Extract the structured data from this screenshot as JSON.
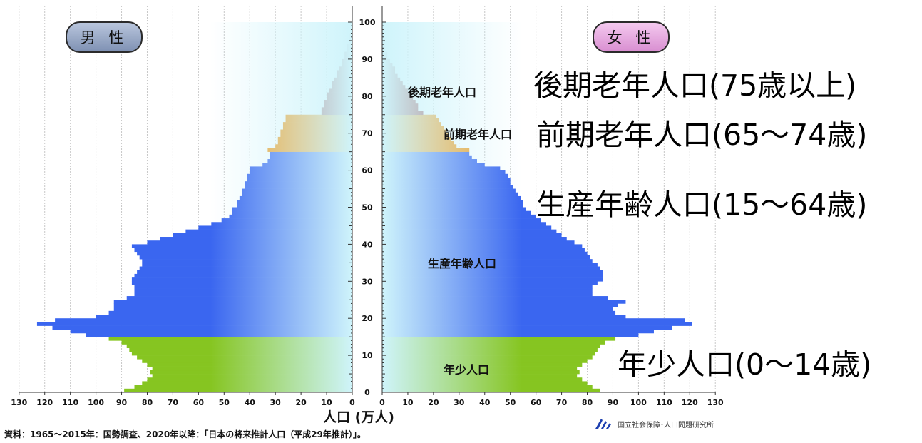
{
  "badges": {
    "male": "男 性",
    "female": "女 性"
  },
  "category_labels": {
    "late_elderly": "後期老年人口",
    "early_elderly": "前期老年人口",
    "working_age": "生産年齢人口",
    "youth": "年少人口"
  },
  "callouts": {
    "late_elderly": "後期老年人口(75歳以上)",
    "early_elderly": "前期老年人口(65～74歳)",
    "working_age": "生産年齢人口(15～64歳)",
    "youth": "年少人口(0～14歳)"
  },
  "xlabel": "人口 (万人)",
  "source": "資料：1965～2015年：国勢調査、2020年以降：「日本の将来推計人口（平成29年推計）」。",
  "institution": "国立社会保障･人口問題研究所",
  "colors": {
    "late_elderly": "#9b3b3b",
    "early_elderly": "#f39a18",
    "working_age": "#3a66f0",
    "youth": "#86c521",
    "inner_fade": "#cff4fb"
  },
  "chart_data": {
    "type": "bar",
    "orientation": "horizontal-pyramid",
    "age_axis": {
      "ticks": [
        0,
        10,
        20,
        30,
        40,
        50,
        60,
        70,
        80,
        90,
        100
      ],
      "range": [
        0,
        100
      ]
    },
    "population_axis": {
      "ticks": [
        130,
        120,
        110,
        100,
        90,
        80,
        70,
        60,
        50,
        40,
        30,
        20,
        10,
        0,
        10,
        20,
        30,
        40,
        50,
        60,
        70,
        80,
        90,
        100,
        110,
        120,
        130
      ],
      "range": [
        0,
        130
      ]
    },
    "grid": true,
    "age_groups": [
      {
        "key": "youth",
        "ages": [
          0,
          14
        ]
      },
      {
        "key": "working_age",
        "ages": [
          15,
          64
        ]
      },
      {
        "key": "early_elderly",
        "ages": [
          65,
          74
        ]
      },
      {
        "key": "late_elderly",
        "ages": [
          75,
          100
        ]
      }
    ],
    "series": [
      {
        "name": "男 性",
        "values": [
          89,
          85,
          82,
          80,
          78,
          79,
          78,
          80,
          82,
          84,
          86,
          87,
          88,
          90,
          95,
          104,
          110,
          117,
          123,
          116,
          100,
          95,
          93,
          93,
          93,
          88,
          85,
          85,
          85,
          86,
          86,
          85,
          84,
          83,
          82,
          82,
          83,
          84,
          85,
          86,
          80,
          75,
          70,
          65,
          60,
          55,
          51,
          48,
          47,
          47,
          45,
          45,
          44,
          43,
          43,
          42,
          42,
          41,
          41,
          40,
          40,
          35,
          33,
          32,
          32,
          33,
          30,
          29,
          29,
          28,
          28,
          27,
          27,
          26,
          26,
          12,
          12,
          11,
          11,
          10,
          10,
          9,
          8,
          8,
          7,
          6,
          6,
          5,
          4,
          4,
          3,
          3,
          2,
          2,
          1,
          1,
          1,
          0,
          0,
          0,
          0
        ]
      },
      {
        "name": "女 性",
        "values": [
          85,
          82,
          80,
          78,
          76,
          77,
          76,
          78,
          80,
          82,
          83,
          84,
          85,
          87,
          91,
          100,
          106,
          113,
          121,
          118,
          95,
          91,
          90,
          92,
          95,
          88,
          82,
          82,
          82,
          84,
          86,
          86,
          86,
          85,
          84,
          82,
          81,
          80,
          79,
          78,
          75,
          72,
          70,
          68,
          66,
          64,
          62,
          60,
          58,
          56,
          55,
          55,
          54,
          53,
          52,
          51,
          50,
          50,
          49,
          48,
          46,
          40,
          37,
          35,
          34,
          34,
          29,
          28,
          27,
          26,
          25,
          24,
          23,
          22,
          21,
          16,
          14,
          14,
          13,
          12,
          11,
          10,
          9,
          8,
          7,
          6,
          5,
          5,
          4,
          3,
          2,
          2,
          1,
          1,
          1,
          0,
          0,
          0,
          0,
          0,
          0
        ]
      }
    ]
  }
}
